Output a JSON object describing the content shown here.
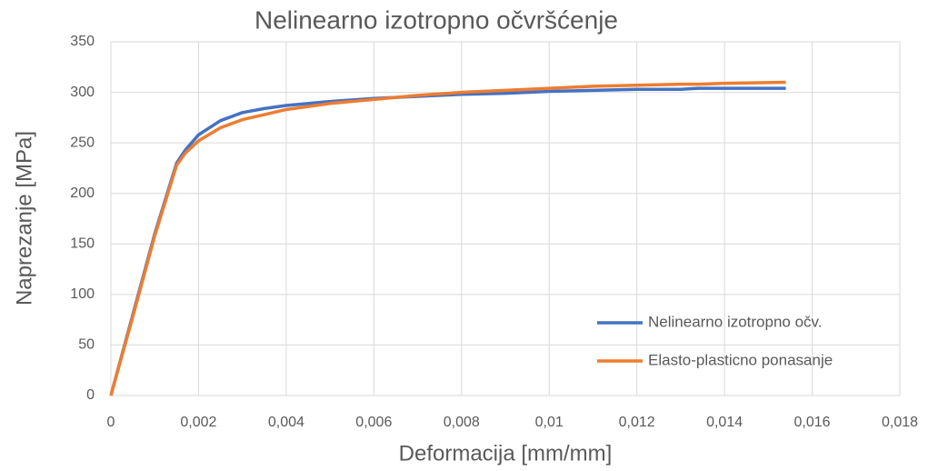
{
  "chart_data": {
    "type": "line",
    "title": "Nelinearno izotropno očvršćenje",
    "x_label": "Deformacija [mm/mm]",
    "y_label": "Naprezanje [MPa]",
    "x": [
      0,
      0.0005,
      0.001,
      0.0015,
      0.0017,
      0.002,
      0.0025,
      0.003,
      0.0035,
      0.004,
      0.005,
      0.006,
      0.007,
      0.008,
      0.009,
      0.01,
      0.011,
      0.012,
      0.013,
      0.0134,
      0.014,
      0.0154
    ],
    "series": [
      {
        "name": "Nelinearno izotropno očv.",
        "color": "#4472c4",
        "values": [
          0,
          80,
          160,
          230,
          243,
          258,
          272,
          280,
          284,
          287,
          291,
          294,
          296,
          298,
          299,
          301,
          302,
          303,
          303,
          304,
          304,
          304
        ]
      },
      {
        "name": "Elasto-plasticno ponasanje",
        "color": "#ed7d31",
        "values": [
          0,
          78,
          158,
          228,
          240,
          252,
          265,
          273,
          278,
          283,
          289,
          293,
          297,
          300,
          302,
          304,
          306,
          307,
          308,
          308,
          309,
          310
        ]
      }
    ],
    "xlim": [
      0,
      0.018
    ],
    "xticks": [
      0,
      {
        "value": 0.002,
        "label": "0,002"
      },
      {
        "value": 0.004,
        "label": "0,004"
      },
      {
        "value": 0.006,
        "label": "0,006"
      },
      {
        "value": 0.008,
        "label": "0,008"
      },
      {
        "value": 0.01,
        "label": "0,01"
      },
      {
        "value": 0.012,
        "label": "0,012"
      },
      {
        "value": 0.014,
        "label": "0,014"
      },
      {
        "value": 0.016,
        "label": "0,016"
      },
      {
        "value": 0.018,
        "label": "0,018"
      }
    ],
    "ylim": [
      0,
      350
    ],
    "yticks": [
      0,
      50,
      100,
      150,
      200,
      250,
      300,
      350
    ],
    "grid": true,
    "legend": "lower right"
  }
}
